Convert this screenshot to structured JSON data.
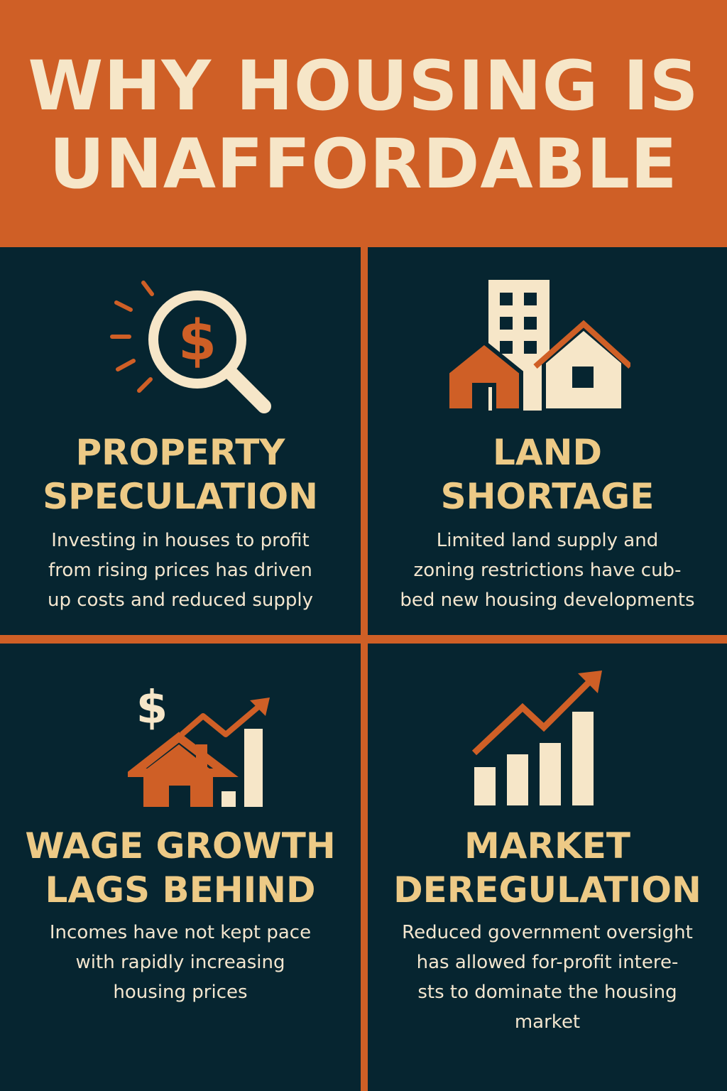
{
  "header": {
    "title_lines": [
      "WHY HOUSING IS",
      "UNAFFORDABLE"
    ]
  },
  "colors": {
    "orange": "#cf5f26",
    "navy": "#062530",
    "cream": "#f6e6c8",
    "gold": "#edca86"
  },
  "panels": [
    {
      "icon": "magnifier-dollar-icon",
      "heading_lines": [
        "PROPERTY",
        "SPECULATION"
      ],
      "desc_lines": [
        "Investing in houses to profit",
        "from rising prices has driven",
        "up costs and reduced supply"
      ]
    },
    {
      "icon": "buildings-houses-icon",
      "heading_lines": [
        "LAND",
        "SHORTAGE"
      ],
      "desc_lines": [
        "Limited land supply and",
        "zoning restrictions have cub-",
        "bed new housing developments"
      ]
    },
    {
      "icon": "house-dollar-growth-icon",
      "heading_lines": [
        "WAGE GROWTH",
        "LAGS BEHIND"
      ],
      "desc_lines": [
        "Incomes have not kept pace",
        "with rapidly increasing",
        "housing prices"
      ]
    },
    {
      "icon": "bar-chart-trend-icon",
      "heading_lines": [
        "MARKET",
        "DEREGULATION"
      ],
      "desc_lines": [
        "Reduced government oversight",
        "has allowed for-profit intere-",
        "sts to dominate the housing",
        "market"
      ]
    }
  ]
}
